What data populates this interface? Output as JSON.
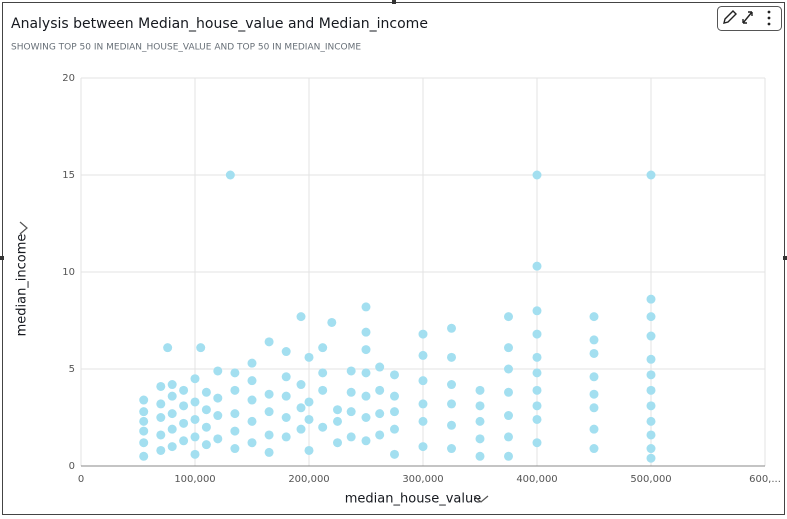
{
  "chart_data": {
    "type": "scatter",
    "title": "Analysis between Median_house_value and Median_income",
    "subtitle": "SHOWING TOP 50 IN MEDIAN_HOUSE_VALUE AND TOP 50 IN MEDIAN_INCOME",
    "x_label": "median_house_value",
    "y_label": "median_income",
    "grid": true,
    "xlim": [
      0,
      600000
    ],
    "ylim": [
      0,
      20
    ],
    "xticks": [
      0,
      {
        "value": 100000,
        "label": "100,000"
      },
      {
        "value": 200000,
        "label": "200,000"
      },
      {
        "value": 300000,
        "label": "300,000"
      },
      {
        "value": 400000,
        "label": "400,000"
      },
      {
        "value": 500000,
        "label": "500,000"
      },
      {
        "value": 600000,
        "label": "600,..."
      }
    ],
    "yticks": [
      0,
      5,
      10,
      15,
      20
    ],
    "series": [
      {
        "color": "#a3dff0",
        "x": [
          55000,
          55000,
          55000,
          55000,
          55000,
          55000,
          70000,
          70000,
          70000,
          70000,
          70000,
          76000,
          80000,
          80000,
          80000,
          80000,
          80000,
          90000,
          90000,
          90000,
          90000,
          100000,
          100000,
          100000,
          100000,
          100000,
          105000,
          110000,
          110000,
          110000,
          110000,
          120000,
          120000,
          120000,
          120000,
          131000,
          135000,
          135000,
          135000,
          135000,
          135000,
          150000,
          150000,
          150000,
          150000,
          150000,
          165000,
          165000,
          165000,
          165000,
          165000,
          180000,
          180000,
          180000,
          180000,
          180000,
          193000,
          193000,
          193000,
          193000,
          200000,
          200000,
          200000,
          200000,
          212000,
          212000,
          212000,
          212000,
          220000,
          225000,
          225000,
          225000,
          237000,
          237000,
          237000,
          237000,
          250000,
          250000,
          250000,
          250000,
          250000,
          250000,
          250000,
          262000,
          262000,
          262000,
          262000,
          275000,
          275000,
          275000,
          275000,
          275000,
          300000,
          300000,
          300000,
          300000,
          300000,
          300000,
          325000,
          325000,
          325000,
          325000,
          325000,
          325000,
          350000,
          350000,
          350000,
          350000,
          350000,
          375000,
          375000,
          375000,
          375000,
          375000,
          375000,
          375000,
          400000,
          400000,
          400000,
          400000,
          400000,
          400000,
          400000,
          400000,
          400000,
          400000,
          450000,
          450000,
          450000,
          450000,
          450000,
          450000,
          450000,
          450000,
          500000,
          500000,
          500000,
          500000,
          500000,
          500000,
          500000,
          500000,
          500000,
          500000,
          500000,
          500000
        ],
        "values": [
          0.5,
          1.2,
          1.8,
          2.3,
          2.8,
          3.4,
          0.8,
          1.6,
          2.5,
          3.2,
          4.1,
          6.1,
          1.0,
          1.9,
          2.7,
          3.6,
          4.2,
          1.3,
          2.2,
          3.1,
          3.9,
          0.6,
          1.5,
          2.4,
          3.3,
          4.5,
          6.1,
          1.1,
          2.0,
          2.9,
          3.8,
          1.4,
          2.6,
          3.5,
          4.9,
          15,
          0.9,
          1.8,
          2.7,
          3.9,
          4.8,
          1.2,
          2.3,
          3.4,
          4.4,
          5.3,
          0.7,
          1.6,
          2.8,
          3.7,
          6.4,
          1.5,
          2.5,
          3.6,
          4.6,
          5.9,
          1.9,
          3.0,
          4.2,
          7.7,
          0.8,
          2.4,
          3.3,
          5.6,
          2.0,
          3.9,
          4.8,
          6.1,
          7.4,
          1.2,
          2.3,
          2.9,
          1.5,
          2.8,
          3.8,
          4.9,
          1.3,
          2.5,
          3.6,
          4.8,
          6.0,
          6.9,
          8.2,
          1.6,
          2.7,
          3.9,
          5.1,
          0.6,
          1.9,
          2.8,
          3.6,
          4.7,
          1.0,
          2.3,
          3.2,
          4.4,
          5.7,
          6.8,
          0.9,
          2.1,
          3.2,
          4.2,
          5.6,
          7.1,
          0.5,
          1.4,
          2.3,
          3.1,
          3.9,
          0.5,
          1.5,
          2.6,
          3.8,
          5.0,
          6.1,
          7.7,
          1.2,
          2.4,
          3.1,
          3.9,
          4.8,
          5.6,
          6.8,
          8.0,
          10.3,
          15,
          0.9,
          1.9,
          3.0,
          3.7,
          4.6,
          5.8,
          6.5,
          7.7,
          0.4,
          0.9,
          1.6,
          2.3,
          3.1,
          3.9,
          4.7,
          5.5,
          6.7,
          7.7,
          8.6,
          15
        ]
      }
    ]
  }
}
